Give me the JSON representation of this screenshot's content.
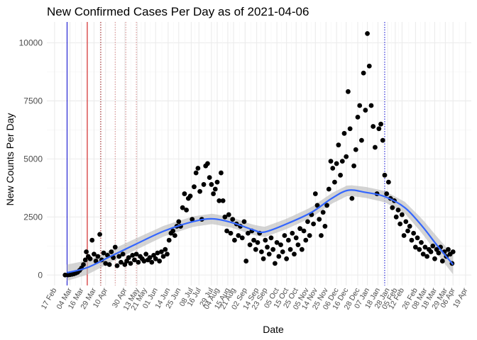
{
  "chart_data": {
    "type": "scatter",
    "title": "New Confirmed Cases Per Day as of 2021-04-06",
    "xlabel": "Date",
    "ylabel": "New Counts Per Day",
    "x_range": [
      "2020-02-09",
      "2021-04-25"
    ],
    "ylim": [
      -450,
      10900
    ],
    "y_ticks": [
      0,
      2500,
      5000,
      7500,
      10000
    ],
    "x_tick_labels": [
      "17 Feb",
      "04 Mar",
      "16 Mar",
      "29 Mar",
      "10 Apr",
      "30 Apr",
      "13 May",
      "21 May",
      "01 Jun",
      "14 Jun",
      "25 Jun",
      "08 Jul",
      "16 Jul",
      "29 Jul",
      "04 Aug",
      "15 Aug",
      "21 Aug",
      "02 Sep",
      "14 Sep",
      "23 Sep",
      "05 Oct",
      "15 Oct",
      "25 Oct",
      "05 Nov",
      "14 Nov",
      "25 Nov",
      "06 Dec",
      "16 Dec",
      "28 Dec",
      "07 Jan",
      "18 Jan",
      "28 Jan",
      "05 Feb",
      "12 Feb",
      "26 Feb",
      "08 Mar",
      "18 Mar",
      "29 Mar",
      "06 Apr",
      "19 Apr"
    ],
    "x_tick_dates": [
      "2020-02-17",
      "2020-03-04",
      "2020-03-16",
      "2020-03-29",
      "2020-04-10",
      "2020-04-30",
      "2020-05-13",
      "2020-05-21",
      "2020-06-01",
      "2020-06-14",
      "2020-06-25",
      "2020-07-08",
      "2020-07-16",
      "2020-07-29",
      "2020-08-04",
      "2020-08-15",
      "2020-08-21",
      "2020-09-02",
      "2020-09-14",
      "2020-09-23",
      "2020-10-05",
      "2020-10-15",
      "2020-10-25",
      "2020-11-05",
      "2020-11-14",
      "2020-11-25",
      "2020-12-06",
      "2020-12-16",
      "2020-12-28",
      "2021-01-07",
      "2021-01-18",
      "2021-01-28",
      "2021-02-05",
      "2021-02-12",
      "2021-02-26",
      "2021-03-08",
      "2021-03-18",
      "2021-03-29",
      "2021-04-06",
      "2021-04-19"
    ],
    "grid": true,
    "vertical_lines": [
      {
        "date": "2020-03-01",
        "color": "#0000cc",
        "style": "solid"
      },
      {
        "date": "2020-03-22",
        "color": "#cc0000",
        "style": "solid"
      },
      {
        "date": "2020-04-05",
        "color": "#8b0000",
        "style": "dotted"
      },
      {
        "date": "2020-04-20",
        "color": "#d08080",
        "style": "dotted"
      },
      {
        "date": "2020-05-01",
        "color": "#d08080",
        "style": "dotted"
      },
      {
        "date": "2020-05-12",
        "color": "#d08080",
        "style": "dotted"
      },
      {
        "date": "2021-01-25",
        "color": "#0000cc",
        "style": "dotted"
      }
    ],
    "points": [
      {
        "x": "2020-02-28",
        "y": 0
      },
      {
        "x": "2020-03-02",
        "y": 5
      },
      {
        "x": "2020-03-04",
        "y": 15
      },
      {
        "x": "2020-03-06",
        "y": 30
      },
      {
        "x": "2020-03-08",
        "y": 50
      },
      {
        "x": "2020-03-10",
        "y": 80
      },
      {
        "x": "2020-03-12",
        "y": 120
      },
      {
        "x": "2020-03-14",
        "y": 200
      },
      {
        "x": "2020-03-16",
        "y": 300
      },
      {
        "x": "2020-03-18",
        "y": 450
      },
      {
        "x": "2020-03-20",
        "y": 650
      },
      {
        "x": "2020-03-21",
        "y": 1000
      },
      {
        "x": "2020-03-23",
        "y": 800
      },
      {
        "x": "2020-03-25",
        "y": 700
      },
      {
        "x": "2020-03-27",
        "y": 1500
      },
      {
        "x": "2020-03-29",
        "y": 900
      },
      {
        "x": "2020-03-31",
        "y": 600
      },
      {
        "x": "2020-04-02",
        "y": 800
      },
      {
        "x": "2020-04-04",
        "y": 1750
      },
      {
        "x": "2020-04-06",
        "y": 650
      },
      {
        "x": "2020-04-08",
        "y": 950
      },
      {
        "x": "2020-04-10",
        "y": 500
      },
      {
        "x": "2020-04-12",
        "y": 850
      },
      {
        "x": "2020-04-14",
        "y": 450
      },
      {
        "x": "2020-04-16",
        "y": 1000
      },
      {
        "x": "2020-04-18",
        "y": 750
      },
      {
        "x": "2020-04-20",
        "y": 1200
      },
      {
        "x": "2020-04-22",
        "y": 400
      },
      {
        "x": "2020-04-24",
        "y": 800
      },
      {
        "x": "2020-04-26",
        "y": 550
      },
      {
        "x": "2020-04-28",
        "y": 900
      },
      {
        "x": "2020-04-30",
        "y": 450
      },
      {
        "x": "2020-05-02",
        "y": 600
      },
      {
        "x": "2020-05-04",
        "y": 750
      },
      {
        "x": "2020-05-06",
        "y": 500
      },
      {
        "x": "2020-05-08",
        "y": 850
      },
      {
        "x": "2020-05-10",
        "y": 650
      },
      {
        "x": "2020-05-12",
        "y": 900
      },
      {
        "x": "2020-05-14",
        "y": 550
      },
      {
        "x": "2020-05-16",
        "y": 800
      },
      {
        "x": "2020-05-18",
        "y": 700
      },
      {
        "x": "2020-05-20",
        "y": 600
      },
      {
        "x": "2020-05-22",
        "y": 900
      },
      {
        "x": "2020-05-24",
        "y": 650
      },
      {
        "x": "2020-05-26",
        "y": 750
      },
      {
        "x": "2020-05-28",
        "y": 550
      },
      {
        "x": "2020-05-30",
        "y": 850
      },
      {
        "x": "2020-06-01",
        "y": 700
      },
      {
        "x": "2020-06-03",
        "y": 950
      },
      {
        "x": "2020-06-05",
        "y": 600
      },
      {
        "x": "2020-06-07",
        "y": 1000
      },
      {
        "x": "2020-06-09",
        "y": 800
      },
      {
        "x": "2020-06-11",
        "y": 1100
      },
      {
        "x": "2020-06-13",
        "y": 900
      },
      {
        "x": "2020-06-15",
        "y": 1500
      },
      {
        "x": "2020-06-17",
        "y": 1800
      },
      {
        "x": "2020-06-19",
        "y": 1900
      },
      {
        "x": "2020-06-21",
        "y": 1700
      },
      {
        "x": "2020-06-23",
        "y": 2100
      },
      {
        "x": "2020-06-25",
        "y": 2300
      },
      {
        "x": "2020-06-27",
        "y": 2100
      },
      {
        "x": "2020-06-29",
        "y": 2900
      },
      {
        "x": "2020-07-01",
        "y": 3500
      },
      {
        "x": "2020-07-03",
        "y": 2800
      },
      {
        "x": "2020-07-05",
        "y": 3300
      },
      {
        "x": "2020-07-07",
        "y": 3400
      },
      {
        "x": "2020-07-09",
        "y": 2400
      },
      {
        "x": "2020-07-11",
        "y": 3800
      },
      {
        "x": "2020-07-13",
        "y": 4400
      },
      {
        "x": "2020-07-15",
        "y": 4600
      },
      {
        "x": "2020-07-17",
        "y": 3600
      },
      {
        "x": "2020-07-19",
        "y": 2400
      },
      {
        "x": "2020-07-21",
        "y": 3900
      },
      {
        "x": "2020-07-23",
        "y": 4700
      },
      {
        "x": "2020-07-25",
        "y": 4800
      },
      {
        "x": "2020-07-27",
        "y": 4200
      },
      {
        "x": "2020-07-29",
        "y": 3900
      },
      {
        "x": "2020-07-31",
        "y": 3500
      },
      {
        "x": "2020-08-02",
        "y": 3700
      },
      {
        "x": "2020-08-04",
        "y": 4000
      },
      {
        "x": "2020-08-06",
        "y": 3200
      },
      {
        "x": "2020-08-08",
        "y": 4400
      },
      {
        "x": "2020-08-10",
        "y": 3200
      },
      {
        "x": "2020-08-12",
        "y": 2500
      },
      {
        "x": "2020-08-14",
        "y": 1900
      },
      {
        "x": "2020-08-16",
        "y": 2600
      },
      {
        "x": "2020-08-18",
        "y": 1800
      },
      {
        "x": "2020-08-20",
        "y": 2400
      },
      {
        "x": "2020-08-22",
        "y": 1500
      },
      {
        "x": "2020-08-24",
        "y": 2200
      },
      {
        "x": "2020-08-26",
        "y": 1700
      },
      {
        "x": "2020-08-28",
        "y": 2100
      },
      {
        "x": "2020-08-30",
        "y": 1600
      },
      {
        "x": "2020-09-01",
        "y": 2300
      },
      {
        "x": "2020-09-03",
        "y": 600
      },
      {
        "x": "2020-09-05",
        "y": 1800
      },
      {
        "x": "2020-09-07",
        "y": 1300
      },
      {
        "x": "2020-09-09",
        "y": 1900
      },
      {
        "x": "2020-09-11",
        "y": 1500
      },
      {
        "x": "2020-09-13",
        "y": 1100
      },
      {
        "x": "2020-09-15",
        "y": 1400
      },
      {
        "x": "2020-09-17",
        "y": 1800
      },
      {
        "x": "2020-09-19",
        "y": 1000
      },
      {
        "x": "2020-09-21",
        "y": 700
      },
      {
        "x": "2020-09-23",
        "y": 1500
      },
      {
        "x": "2020-09-25",
        "y": 1200
      },
      {
        "x": "2020-09-27",
        "y": 900
      },
      {
        "x": "2020-09-29",
        "y": 1600
      },
      {
        "x": "2020-10-01",
        "y": 1100
      },
      {
        "x": "2020-10-03",
        "y": 500
      },
      {
        "x": "2020-10-05",
        "y": 1400
      },
      {
        "x": "2020-10-07",
        "y": 800
      },
      {
        "x": "2020-10-09",
        "y": 1300
      },
      {
        "x": "2020-10-11",
        "y": 1000
      },
      {
        "x": "2020-10-13",
        "y": 1700
      },
      {
        "x": "2020-10-15",
        "y": 700
      },
      {
        "x": "2020-10-17",
        "y": 1500
      },
      {
        "x": "2020-10-19",
        "y": 1100
      },
      {
        "x": "2020-10-21",
        "y": 1800
      },
      {
        "x": "2020-10-23",
        "y": 900
      },
      {
        "x": "2020-10-25",
        "y": 1600
      },
      {
        "x": "2020-10-27",
        "y": 1300
      },
      {
        "x": "2020-10-29",
        "y": 2000
      },
      {
        "x": "2020-10-31",
        "y": 1100
      },
      {
        "x": "2020-11-02",
        "y": 1900
      },
      {
        "x": "2020-11-04",
        "y": 1500
      },
      {
        "x": "2020-11-06",
        "y": 2300
      },
      {
        "x": "2020-11-08",
        "y": 1700
      },
      {
        "x": "2020-11-10",
        "y": 2600
      },
      {
        "x": "2020-11-12",
        "y": 2200
      },
      {
        "x": "2020-11-14",
        "y": 3500
      },
      {
        "x": "2020-11-16",
        "y": 3000
      },
      {
        "x": "2020-11-18",
        "y": 2400
      },
      {
        "x": "2020-11-20",
        "y": 1700
      },
      {
        "x": "2020-11-22",
        "y": 2700
      },
      {
        "x": "2020-11-24",
        "y": 2100
      },
      {
        "x": "2020-11-26",
        "y": 3000
      },
      {
        "x": "2020-11-28",
        "y": 3700
      },
      {
        "x": "2020-11-30",
        "y": 4900
      },
      {
        "x": "2020-12-02",
        "y": 4600
      },
      {
        "x": "2020-12-04",
        "y": 4000
      },
      {
        "x": "2020-12-06",
        "y": 4800
      },
      {
        "x": "2020-12-08",
        "y": 5600
      },
      {
        "x": "2020-12-10",
        "y": 4300
      },
      {
        "x": "2020-12-12",
        "y": 4900
      },
      {
        "x": "2020-12-14",
        "y": 6100
      },
      {
        "x": "2020-12-16",
        "y": 5100
      },
      {
        "x": "2020-12-18",
        "y": 7900
      },
      {
        "x": "2020-12-20",
        "y": 6300
      },
      {
        "x": "2020-12-22",
        "y": 3300
      },
      {
        "x": "2020-12-24",
        "y": 4700
      },
      {
        "x": "2020-12-26",
        "y": 5400
      },
      {
        "x": "2020-12-28",
        "y": 6800
      },
      {
        "x": "2020-12-30",
        "y": 7300
      },
      {
        "x": "2021-01-01",
        "y": 5800
      },
      {
        "x": "2021-01-03",
        "y": 8700
      },
      {
        "x": "2021-01-05",
        "y": 7100
      },
      {
        "x": "2021-01-07",
        "y": 10400
      },
      {
        "x": "2021-01-09",
        "y": 9000
      },
      {
        "x": "2021-01-11",
        "y": 7300
      },
      {
        "x": "2021-01-13",
        "y": 6400
      },
      {
        "x": "2021-01-15",
        "y": 5500
      },
      {
        "x": "2021-01-17",
        "y": 3500
      },
      {
        "x": "2021-01-19",
        "y": 6300
      },
      {
        "x": "2021-01-21",
        "y": 6500
      },
      {
        "x": "2021-01-23",
        "y": 5800
      },
      {
        "x": "2021-01-25",
        "y": 4300
      },
      {
        "x": "2021-01-27",
        "y": 3500
      },
      {
        "x": "2021-01-29",
        "y": 4000
      },
      {
        "x": "2021-01-31",
        "y": 3300
      },
      {
        "x": "2021-02-02",
        "y": 2900
      },
      {
        "x": "2021-02-04",
        "y": 3200
      },
      {
        "x": "2021-02-06",
        "y": 2500
      },
      {
        "x": "2021-02-08",
        "y": 2800
      },
      {
        "x": "2021-02-10",
        "y": 2200
      },
      {
        "x": "2021-02-12",
        "y": 2600
      },
      {
        "x": "2021-02-14",
        "y": 1700
      },
      {
        "x": "2021-02-16",
        "y": 2300
      },
      {
        "x": "2021-02-18",
        "y": 1900
      },
      {
        "x": "2021-02-20",
        "y": 2100
      },
      {
        "x": "2021-02-22",
        "y": 1500
      },
      {
        "x": "2021-02-24",
        "y": 1800
      },
      {
        "x": "2021-02-26",
        "y": 1200
      },
      {
        "x": "2021-02-28",
        "y": 1600
      },
      {
        "x": "2021-03-02",
        "y": 1100
      },
      {
        "x": "2021-03-04",
        "y": 1400
      },
      {
        "x": "2021-03-06",
        "y": 900
      },
      {
        "x": "2021-03-08",
        "y": 1200
      },
      {
        "x": "2021-03-10",
        "y": 800
      },
      {
        "x": "2021-03-12",
        "y": 1100
      },
      {
        "x": "2021-03-14",
        "y": 1000
      },
      {
        "x": "2021-03-16",
        "y": 1250
      },
      {
        "x": "2021-03-18",
        "y": 700
      },
      {
        "x": "2021-03-20",
        "y": 1100
      },
      {
        "x": "2021-03-22",
        "y": 950
      },
      {
        "x": "2021-03-24",
        "y": 1200
      },
      {
        "x": "2021-03-26",
        "y": 600
      },
      {
        "x": "2021-03-28",
        "y": 1000
      },
      {
        "x": "2021-03-30",
        "y": 800
      },
      {
        "x": "2021-04-01",
        "y": 1100
      },
      {
        "x": "2021-04-03",
        "y": 900
      },
      {
        "x": "2021-04-05",
        "y": 500
      },
      {
        "x": "2021-04-06",
        "y": 1000
      }
    ],
    "smooth_curve": [
      {
        "x": "2020-03-01",
        "y": 100
      },
      {
        "x": "2020-03-22",
        "y": 320
      },
      {
        "x": "2020-04-15",
        "y": 800
      },
      {
        "x": "2020-05-10",
        "y": 1300
      },
      {
        "x": "2020-06-10",
        "y": 1900
      },
      {
        "x": "2020-07-10",
        "y": 2300
      },
      {
        "x": "2020-07-30",
        "y": 2420
      },
      {
        "x": "2020-08-20",
        "y": 2250
      },
      {
        "x": "2020-09-10",
        "y": 1950
      },
      {
        "x": "2020-09-22",
        "y": 1850
      },
      {
        "x": "2020-10-15",
        "y": 2200
      },
      {
        "x": "2020-11-10",
        "y": 2700
      },
      {
        "x": "2020-12-01",
        "y": 3300
      },
      {
        "x": "2020-12-18",
        "y": 3650
      },
      {
        "x": "2021-01-05",
        "y": 3560
      },
      {
        "x": "2021-01-25",
        "y": 3380
      },
      {
        "x": "2021-02-15",
        "y": 2900
      },
      {
        "x": "2021-03-05",
        "y": 2100
      },
      {
        "x": "2021-03-20",
        "y": 1300
      },
      {
        "x": "2021-04-06",
        "y": 450
      }
    ],
    "smooth_band_halfwidth": [
      {
        "x": "2020-03-01",
        "y": 350
      },
      {
        "x": "2020-04-15",
        "y": 260
      },
      {
        "x": "2020-06-10",
        "y": 230
      },
      {
        "x": "2020-08-20",
        "y": 220
      },
      {
        "x": "2020-10-15",
        "y": 220
      },
      {
        "x": "2020-12-18",
        "y": 230
      },
      {
        "x": "2021-02-15",
        "y": 250
      },
      {
        "x": "2021-04-06",
        "y": 420
      }
    ],
    "colors": {
      "points": "#000000",
      "smooth": "#3366ff",
      "band": "#bdbdbd",
      "grid_major": "#ebebeb",
      "grid_minor": "#f5f5f5"
    }
  }
}
